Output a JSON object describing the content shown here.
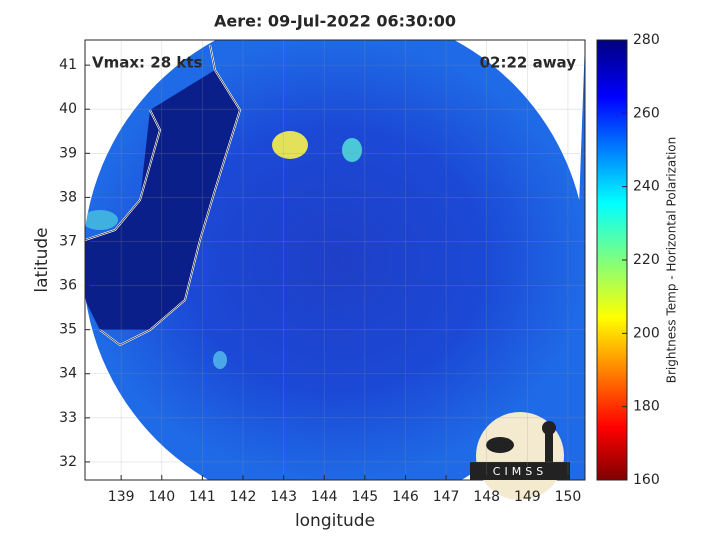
{
  "chart_data": {
    "type": "map",
    "title": "Aere: 09-Jul-2022 06:30:00",
    "annotations": [
      "Vmax: 28 kts",
      "02:22 away"
    ],
    "xlabel": "longitude",
    "ylabel": "latitude",
    "xlim": [
      138.11,
      150.42
    ],
    "xticks": [
      139,
      140,
      141,
      142,
      143,
      144,
      145,
      146,
      147,
      148,
      149,
      150
    ],
    "ylim": [
      31.59,
      41.57
    ],
    "yticks": [
      32,
      33,
      34,
      35,
      36,
      37,
      38,
      39,
      40,
      41
    ],
    "grid": true,
    "colorbar": {
      "label": "Brightness Temp - Horizontal Polarization",
      "lim": [
        160,
        280
      ],
      "ticks": [
        160,
        180,
        200,
        220,
        240,
        260,
        280
      ]
    },
    "logo": "CIMSS"
  }
}
